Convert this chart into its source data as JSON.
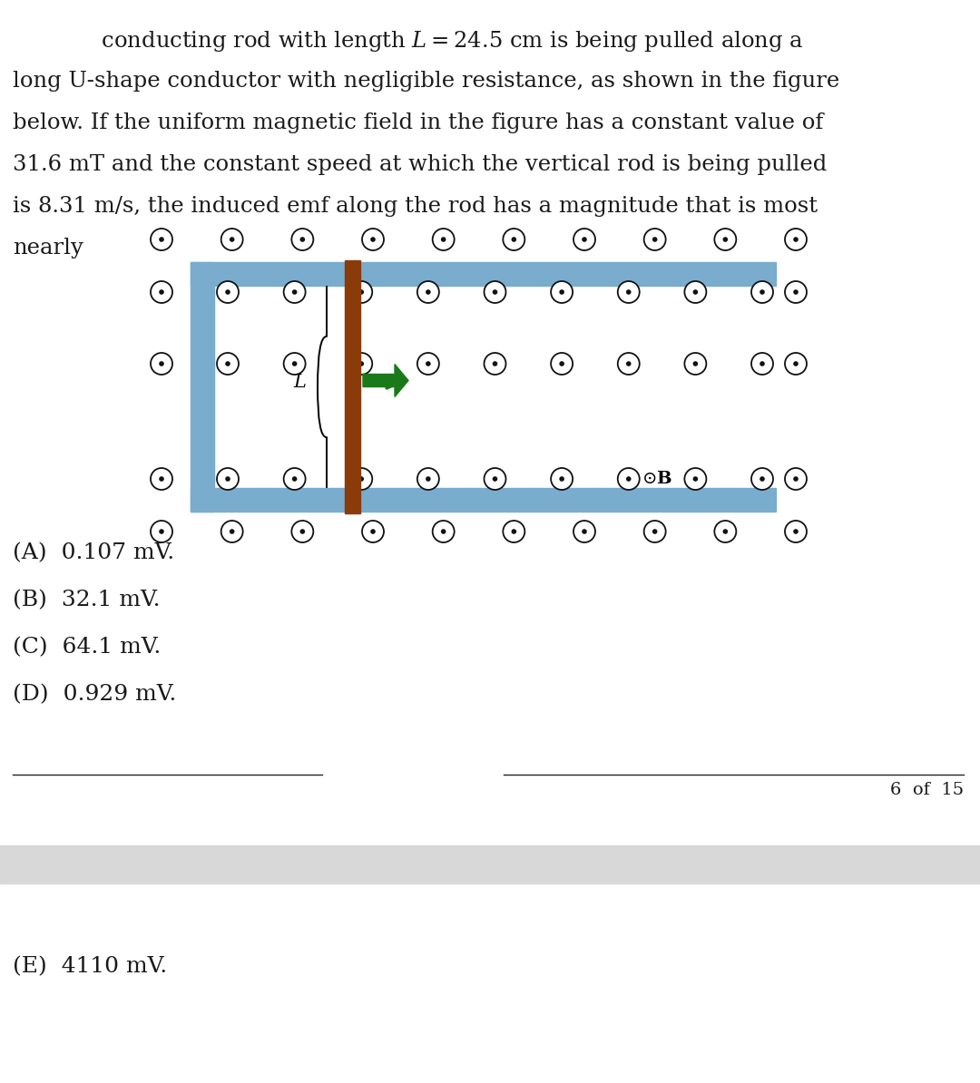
{
  "bg_color": "#ffffff",
  "text_color": "#1a1a1a",
  "para_lines": [
    [
      90,
      " conducting rod with length $L = 24.5$ cm is being pulled along a"
    ],
    [
      0,
      "long U-shape conductor with negligible resistance, as shown in the figure"
    ],
    [
      0,
      "below. If the uniform magnetic field in the figure has a constant value of"
    ],
    [
      0,
      "31.6 mT and the constant speed at which the vertical rod is being pulled"
    ],
    [
      0,
      "is 8.31 m/s, the induced emf along the rod has a magnitude that is most"
    ],
    [
      0,
      "nearly"
    ]
  ],
  "choices_AD": [
    "(A)  0.107 mV.",
    "(B)  32.1 mV.",
    "(C)  64.1 mV.",
    "(D)  0.929 mV."
  ],
  "choice_E": "(E)  4110 mV.",
  "page_label": "6  of  15",
  "u_color": "#7aacce",
  "rod_color": "#8B3A0A",
  "arrow_color": "#1a7a1a",
  "dot_outer_r": 11,
  "dot_inner_r": 2.5,
  "font_size_para": 17.5,
  "font_size_choices": 18,
  "font_size_page": 14,
  "font_size_fig_label": 15
}
